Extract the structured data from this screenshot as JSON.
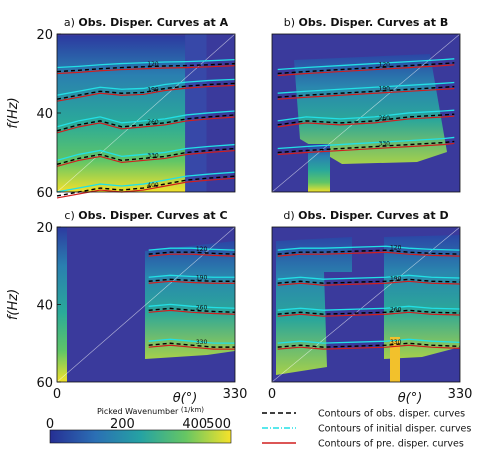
{
  "chart_data": [
    {
      "id": "a",
      "type": "heatmap",
      "title_prefix": "a)",
      "title": "Obs. Disper. Curves at A",
      "ylabel": "f(Hz)",
      "yticks": [
        20,
        40,
        60
      ],
      "ylim": [
        20,
        60
      ],
      "xlim": [
        0,
        330
      ],
      "contours": {
        "obs": [
          {
            "label": "120",
            "x": [
              0,
              40,
              80,
              120,
              160,
              200,
              240,
              280,
              330
            ],
            "y": [
              29.5,
              29.2,
              28.8,
              28.5,
              28.3,
              28.1,
              28.0,
              27.8,
              27.5
            ]
          },
          {
            "label": "190",
            "x": [
              0,
              40,
              80,
              120,
              160,
              200,
              240,
              280,
              330
            ],
            "y": [
              36.5,
              35.5,
              34.5,
              35.0,
              34.8,
              33.8,
              33.2,
              32.8,
              32.5
            ]
          },
          {
            "label": "260",
            "x": [
              0,
              40,
              80,
              120,
              160,
              200,
              240,
              280,
              330
            ],
            "y": [
              44.5,
              43.0,
              42.0,
              43.5,
              43.0,
              42.5,
              41.5,
              41.0,
              40.5
            ]
          },
          {
            "label": "330",
            "x": [
              0,
              40,
              80,
              120,
              160,
              200,
              240,
              280,
              330
            ],
            "y": [
              53.0,
              51.5,
              50.5,
              52.0,
              51.5,
              51.0,
              50.0,
              49.5,
              49.0
            ]
          },
          {
            "label": "400",
            "x": [
              0,
              40,
              80,
              120,
              160,
              200,
              240,
              280,
              330
            ],
            "y": [
              61.0,
              60.0,
              59.0,
              59.5,
              59.0,
              58.0,
              57.0,
              56.5,
              56.0
            ]
          }
        ]
      }
    },
    {
      "id": "b",
      "type": "heatmap",
      "title_prefix": "b)",
      "title": "Obs. Disper. Curves at B",
      "ylabel": "",
      "yticks": [],
      "ylim": [
        20,
        60
      ],
      "xlim": [
        0,
        330
      ],
      "contours": {
        "obs": [
          {
            "label": "120",
            "x": [
              10,
              60,
              120,
              180,
              240,
              300,
              320
            ],
            "y": [
              30.0,
              29.5,
              29.0,
              28.5,
              28.0,
              27.5,
              27.3
            ]
          },
          {
            "label": "190",
            "x": [
              10,
              60,
              120,
              180,
              240,
              300,
              320
            ],
            "y": [
              36.0,
              35.5,
              35.0,
              34.5,
              34.0,
              33.5,
              33.3
            ]
          },
          {
            "label": "260",
            "x": [
              10,
              60,
              120,
              180,
              240,
              300,
              320
            ],
            "y": [
              43.0,
              42.0,
              42.5,
              42.0,
              41.0,
              40.5,
              40.3
            ]
          },
          {
            "label": "330",
            "x": [
              10,
              60,
              120,
              180,
              240,
              300,
              320
            ],
            "y": [
              50.0,
              49.5,
              49.0,
              48.5,
              48.0,
              47.5,
              47.2
            ]
          }
        ]
      }
    },
    {
      "id": "c",
      "type": "heatmap",
      "title_prefix": "c)",
      "title": "Obs. Disper. Curves at C",
      "ylabel": "f(Hz)",
      "yticks": [
        20,
        40,
        60
      ],
      "ylim": [
        20,
        60
      ],
      "xlim": [
        0,
        330
      ],
      "xlabel": "θ(°)",
      "xticks": [
        "0",
        "330"
      ],
      "contours": {
        "obs": [
          {
            "label": "120",
            "x": [
              170,
              210,
              250,
              290,
              330
            ],
            "y": [
              27.0,
              26.5,
              26.5,
              26.8,
              27.0
            ]
          },
          {
            "label": "190",
            "x": [
              170,
              210,
              250,
              290,
              330
            ],
            "y": [
              34.0,
              33.5,
              33.8,
              34.0,
              34.0
            ]
          },
          {
            "label": "260",
            "x": [
              170,
              210,
              250,
              290,
              330
            ],
            "y": [
              41.5,
              41.0,
              41.5,
              41.8,
              42.0
            ]
          },
          {
            "label": "330",
            "x": [
              170,
              210,
              250,
              290,
              330
            ],
            "y": [
              50.5,
              50.0,
              50.5,
              51.0,
              51.0
            ]
          }
        ]
      }
    },
    {
      "id": "d",
      "type": "heatmap",
      "title_prefix": "d)",
      "title": "Obs. Disper. Curves at D",
      "ylabel": "",
      "yticks": [],
      "ylim": [
        20,
        60
      ],
      "xlim": [
        0,
        330
      ],
      "xlabel": "θ(°)",
      "xticks": [
        "0",
        "330"
      ],
      "contours": {
        "obs": [
          {
            "label": "120",
            "x": [
              10,
              50,
              90,
              200,
              240,
              280,
              330
            ],
            "y": [
              27.0,
              26.5,
              26.5,
              26.0,
              26.5,
              26.8,
              27.0
            ]
          },
          {
            "label": "190",
            "x": [
              10,
              50,
              90,
              200,
              240,
              280,
              330
            ],
            "y": [
              34.5,
              34.0,
              34.5,
              34.0,
              33.5,
              34.0,
              34.2
            ]
          },
          {
            "label": "260",
            "x": [
              10,
              50,
              90,
              200,
              240,
              280,
              330
            ],
            "y": [
              42.5,
              42.0,
              42.5,
              42.0,
              41.5,
              42.0,
              42.2
            ]
          },
          {
            "label": "330",
            "x": [
              10,
              50,
              90,
              200,
              240,
              280,
              330
            ],
            "y": [
              51.0,
              50.5,
              51.0,
              50.5,
              50.0,
              50.5,
              50.8
            ]
          }
        ]
      }
    }
  ],
  "colorbar": {
    "label": "Picked Wavenumber",
    "unit": "1/km",
    "ticks": [
      "0",
      "200",
      "400",
      "500"
    ],
    "range": [
      0,
      500
    ]
  },
  "legend": {
    "items": [
      {
        "label": "Contours of obs. disper. curves",
        "style": "dashed",
        "color": "#000000"
      },
      {
        "label": "Contours of initial disper. curves",
        "style": "dashdot",
        "color": "#22e0e6"
      },
      {
        "label": "Contours of pre. disper. curves",
        "style": "solid",
        "color": "#d11f1f"
      }
    ]
  },
  "colors": {
    "background": "#3a3a9c",
    "low": "#24339a",
    "mid": "#26a4a0",
    "high": "#f6e22a"
  }
}
